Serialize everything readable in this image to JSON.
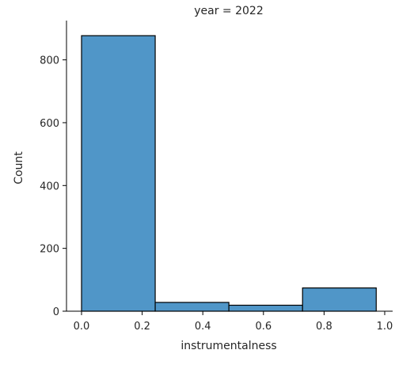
{
  "chart_data": {
    "type": "bar",
    "title": "year = 2022",
    "xlabel": "instrumentalness",
    "ylabel": "Count",
    "xlim": [
      -0.04,
      1.0
    ],
    "ylim": [
      0,
      925
    ],
    "x_ticks": [
      0.0,
      0.2,
      0.4,
      0.6,
      0.8,
      1.0
    ],
    "x_tick_labels": [
      "0.0",
      "0.2",
      "0.4",
      "0.6",
      "0.8",
      "1.0"
    ],
    "y_ticks": [
      0,
      200,
      400,
      600,
      800
    ],
    "y_tick_labels": [
      "0",
      "200",
      "400",
      "600",
      "800"
    ],
    "bins": [
      {
        "x0": 0.0,
        "x1": 0.243,
        "count": 877
      },
      {
        "x0": 0.243,
        "x1": 0.486,
        "count": 28
      },
      {
        "x0": 0.486,
        "x1": 0.729,
        "count": 19
      },
      {
        "x0": 0.729,
        "x1": 0.972,
        "count": 74
      }
    ],
    "grid": false,
    "bar_color": "#5096c8",
    "edge_color": "#000000"
  }
}
